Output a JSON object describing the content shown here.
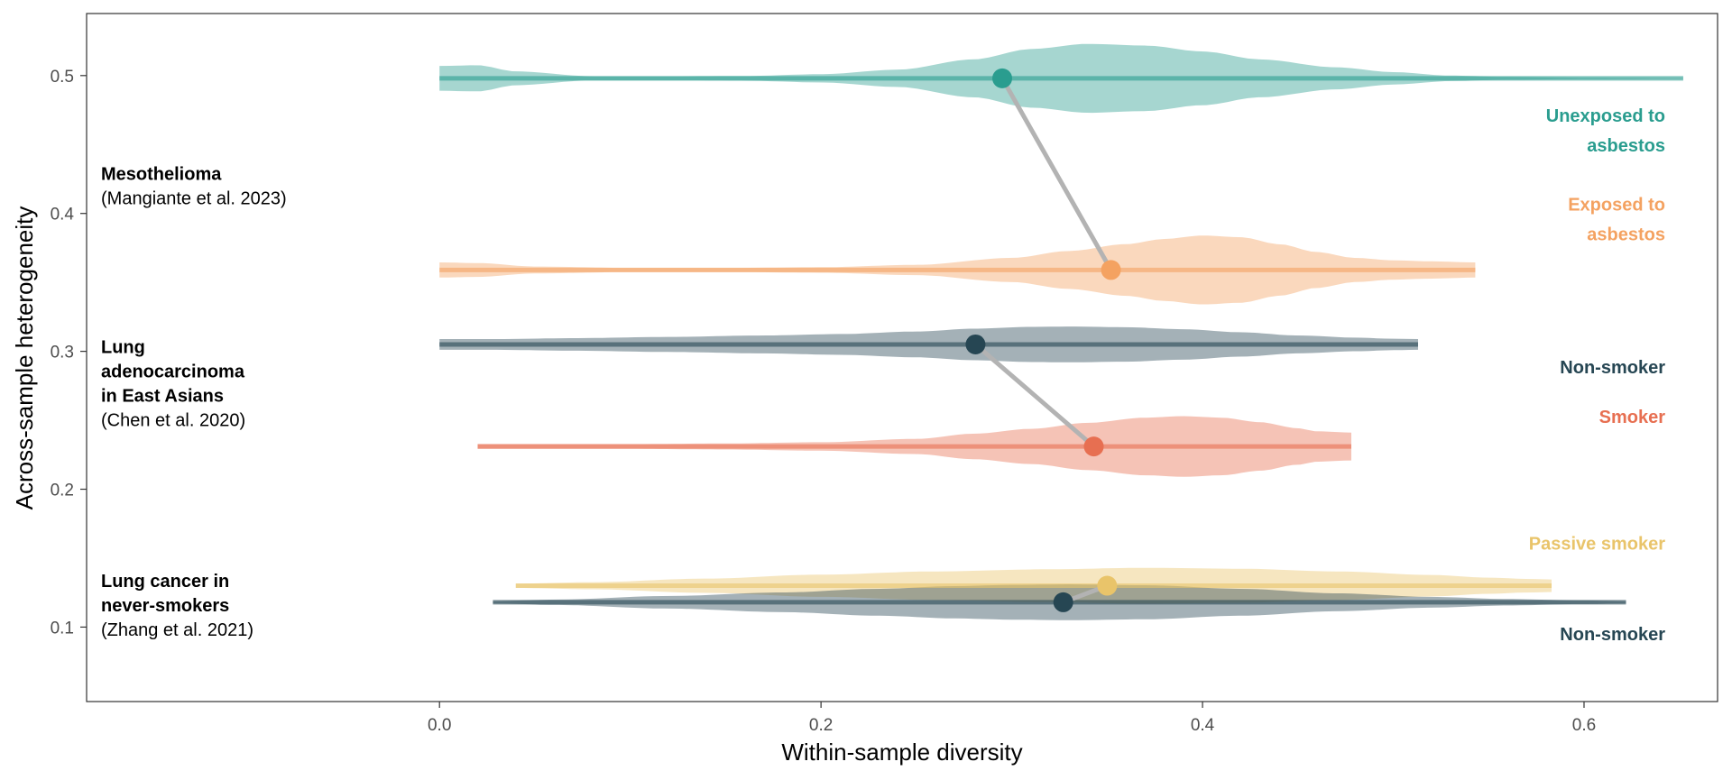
{
  "chart_data": {
    "type": "violin",
    "title": "",
    "xlabel": "Within-sample diversity",
    "ylabel": "Across-sample heterogeneity",
    "xlim": [
      -0.185,
      0.67
    ],
    "ylim": [
      0.046,
      0.545
    ],
    "x_ticks": [
      0.0,
      0.2,
      0.4,
      0.6
    ],
    "y_ticks": [
      0.1,
      0.2,
      0.3,
      0.4,
      0.5
    ],
    "x_tick_labels": [
      "0.0",
      "0.2",
      "0.4",
      "0.6"
    ],
    "y_tick_labels": [
      "0.1",
      "0.2",
      "0.3",
      "0.4",
      "0.5"
    ],
    "grid": false,
    "legend": "none (direct labels on right)",
    "studies": [
      {
        "title_lines": [
          "Mesothelioma"
        ],
        "citation": "(Mangiante et al. 2023)",
        "label_y": 0.42,
        "groups": [
          {
            "label_lines": [
              "Unexposed to",
              "asbestos"
            ],
            "color": "#2a9d8f",
            "y": 0.498,
            "point_x": 0.295,
            "x_range": [
              0.0,
              0.652
            ],
            "half_width": 0.025,
            "profile": [
              [
                0.0,
                0.36
              ],
              [
                0.02,
                0.38
              ],
              [
                0.04,
                0.2
              ],
              [
                0.08,
                0.06
              ],
              [
                0.12,
                0.06
              ],
              [
                0.16,
                0.07
              ],
              [
                0.2,
                0.12
              ],
              [
                0.24,
                0.25
              ],
              [
                0.28,
                0.55
              ],
              [
                0.31,
                0.85
              ],
              [
                0.34,
                1.0
              ],
              [
                0.37,
                0.95
              ],
              [
                0.4,
                0.78
              ],
              [
                0.43,
                0.55
              ],
              [
                0.47,
                0.32
              ],
              [
                0.5,
                0.18
              ],
              [
                0.53,
                0.08
              ],
              [
                0.56,
                0.04
              ],
              [
                0.6,
                0.02
              ],
              [
                0.652,
                0.01
              ]
            ]
          },
          {
            "label_lines": [
              "Exposed to",
              "asbestos"
            ],
            "color": "#f4a261",
            "y": 0.359,
            "point_x": 0.352,
            "x_range": [
              0.0,
              0.543
            ],
            "half_width": 0.025,
            "profile": [
              [
                0.0,
                0.22
              ],
              [
                0.02,
                0.2
              ],
              [
                0.05,
                0.1
              ],
              [
                0.1,
                0.06
              ],
              [
                0.15,
                0.06
              ],
              [
                0.2,
                0.08
              ],
              [
                0.25,
                0.15
              ],
              [
                0.3,
                0.35
              ],
              [
                0.33,
                0.55
              ],
              [
                0.36,
                0.75
              ],
              [
                0.38,
                0.9
              ],
              [
                0.4,
                1.0
              ],
              [
                0.42,
                0.95
              ],
              [
                0.44,
                0.75
              ],
              [
                0.46,
                0.52
              ],
              [
                0.48,
                0.35
              ],
              [
                0.5,
                0.28
              ],
              [
                0.52,
                0.25
              ],
              [
                0.543,
                0.22
              ]
            ]
          }
        ]
      },
      {
        "title_lines": [
          "Lung",
          "adenocarcinoma",
          "in East Asians"
        ],
        "citation": "(Chen et al. 2020)",
        "label_y": 0.277,
        "groups": [
          {
            "label_lines": [
              "Non-smoker"
            ],
            "color": "#264653",
            "y": 0.305,
            "point_x": 0.281,
            "x_range": [
              0.0,
              0.513
            ],
            "half_width": 0.013,
            "profile": [
              [
                0.0,
                0.3
              ],
              [
                0.03,
                0.3
              ],
              [
                0.07,
                0.35
              ],
              [
                0.12,
                0.42
              ],
              [
                0.17,
                0.5
              ],
              [
                0.21,
                0.58
              ],
              [
                0.25,
                0.72
              ],
              [
                0.28,
                0.88
              ],
              [
                0.31,
                0.98
              ],
              [
                0.33,
                1.0
              ],
              [
                0.36,
                0.96
              ],
              [
                0.39,
                0.85
              ],
              [
                0.42,
                0.68
              ],
              [
                0.45,
                0.5
              ],
              [
                0.48,
                0.38
              ],
              [
                0.5,
                0.32
              ],
              [
                0.513,
                0.3
              ]
            ]
          },
          {
            "label_lines": [
              "Smoker"
            ],
            "color": "#e76f51",
            "y": 0.231,
            "point_x": 0.343,
            "x_range": [
              0.02,
              0.478
            ],
            "half_width": 0.022,
            "profile": [
              [
                0.02,
                0.08
              ],
              [
                0.05,
                0.08
              ],
              [
                0.1,
                0.08
              ],
              [
                0.15,
                0.1
              ],
              [
                0.2,
                0.14
              ],
              [
                0.25,
                0.25
              ],
              [
                0.28,
                0.42
              ],
              [
                0.31,
                0.58
              ],
              [
                0.34,
                0.78
              ],
              [
                0.37,
                0.95
              ],
              [
                0.39,
                1.0
              ],
              [
                0.41,
                0.95
              ],
              [
                0.43,
                0.8
              ],
              [
                0.45,
                0.6
              ],
              [
                0.46,
                0.5
              ],
              [
                0.478,
                0.46
              ]
            ]
          }
        ]
      },
      {
        "title_lines": [
          "Lung cancer in",
          "never-smokers"
        ],
        "citation": "(Zhang et al. 2021)",
        "label_y": 0.116,
        "groups": [
          {
            "label_lines": [
              "Passive smoker"
            ],
            "color": "#e9c46a",
            "y": 0.13,
            "point_x": 0.35,
            "x_range": [
              0.04,
              0.583
            ],
            "half_width": 0.013,
            "profile": [
              [
                0.04,
                0.12
              ],
              [
                0.08,
                0.2
              ],
              [
                0.14,
                0.4
              ],
              [
                0.2,
                0.62
              ],
              [
                0.26,
                0.8
              ],
              [
                0.32,
                0.92
              ],
              [
                0.37,
                1.0
              ],
              [
                0.42,
                0.95
              ],
              [
                0.47,
                0.8
              ],
              [
                0.52,
                0.6
              ],
              [
                0.55,
                0.45
              ],
              [
                0.57,
                0.38
              ],
              [
                0.583,
                0.35
              ]
            ]
          },
          {
            "label_lines": [
              "Non-smoker"
            ],
            "color": "#264653",
            "y": 0.118,
            "point_x": 0.327,
            "x_range": [
              0.028,
              0.622
            ],
            "half_width": 0.013,
            "profile": [
              [
                0.028,
                0.06
              ],
              [
                0.06,
                0.15
              ],
              [
                0.12,
                0.35
              ],
              [
                0.18,
                0.55
              ],
              [
                0.23,
                0.75
              ],
              [
                0.27,
                0.9
              ],
              [
                0.3,
                0.97
              ],
              [
                0.33,
                1.0
              ],
              [
                0.37,
                0.95
              ],
              [
                0.42,
                0.75
              ],
              [
                0.47,
                0.5
              ],
              [
                0.52,
                0.3
              ],
              [
                0.56,
                0.18
              ],
              [
                0.6,
                0.1
              ],
              [
                0.622,
                0.06
              ]
            ]
          }
        ]
      }
    ],
    "connectors": [
      {
        "from": [
          0.295,
          0.498
        ],
        "to": [
          0.352,
          0.359
        ]
      },
      {
        "from": [
          0.281,
          0.305
        ],
        "to": [
          0.343,
          0.231
        ]
      },
      {
        "from": [
          0.327,
          0.118
        ],
        "to": [
          0.35,
          0.13
        ]
      }
    ],
    "connector_color": "#b3b3b3"
  }
}
